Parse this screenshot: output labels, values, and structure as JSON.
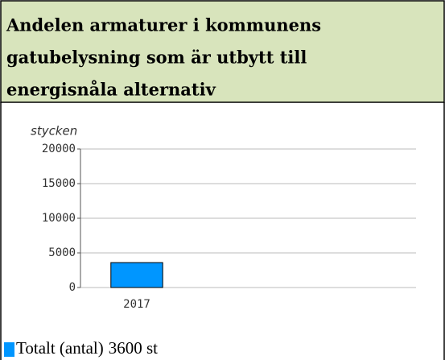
{
  "chart_data": {
    "type": "bar",
    "title_lines": [
      "Andelen armaturer i kommunens",
      "gatubelysning som är utbytt till",
      "energisnåla alternativ"
    ],
    "y_label": "stycken",
    "categories": [
      "2017"
    ],
    "series": [
      {
        "name": "Totalt (antal)",
        "color": "#0096ff",
        "values": [
          3600
        ],
        "value_labels": [
          "3600 st"
        ]
      }
    ],
    "ylim": [
      0,
      20000
    ],
    "yticks": [
      0,
      5000,
      10000,
      15000,
      20000
    ],
    "grid": true,
    "legend": "bottom-left"
  }
}
